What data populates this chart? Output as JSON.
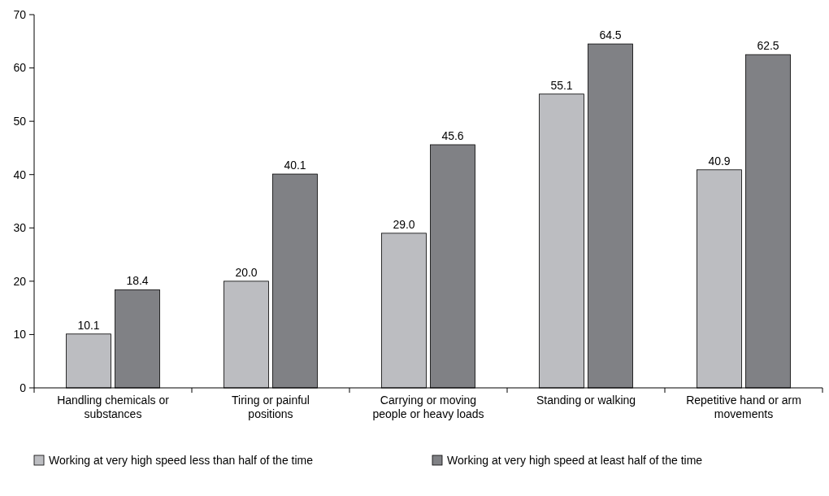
{
  "chart_data": {
    "type": "bar",
    "categories": [
      "Handling chemicals or substances",
      "Tiring or painful positions",
      "Carrying or moving people or heavy loads",
      "Standing or walking",
      "Repetitive hand or arm movements"
    ],
    "series": [
      {
        "name": "Working at very high speed less than half of the time",
        "color": "#bcbdc1",
        "values": [
          10.1,
          20.0,
          29.0,
          55.1,
          40.9
        ],
        "value_labels": [
          "10.1",
          "20.0",
          "29.0",
          "55.1",
          "40.9"
        ]
      },
      {
        "name": "Working at very high speed at least half of the time",
        "color": "#808185",
        "values": [
          18.4,
          40.1,
          45.6,
          64.5,
          62.5
        ],
        "value_labels": [
          "18.4",
          "40.1",
          "45.6",
          "64.5",
          "62.5"
        ]
      }
    ],
    "ylim": [
      0,
      70
    ],
    "yticks": [
      0,
      10,
      20,
      30,
      40,
      50,
      60,
      70
    ],
    "grid": false,
    "legend": "bottom"
  }
}
